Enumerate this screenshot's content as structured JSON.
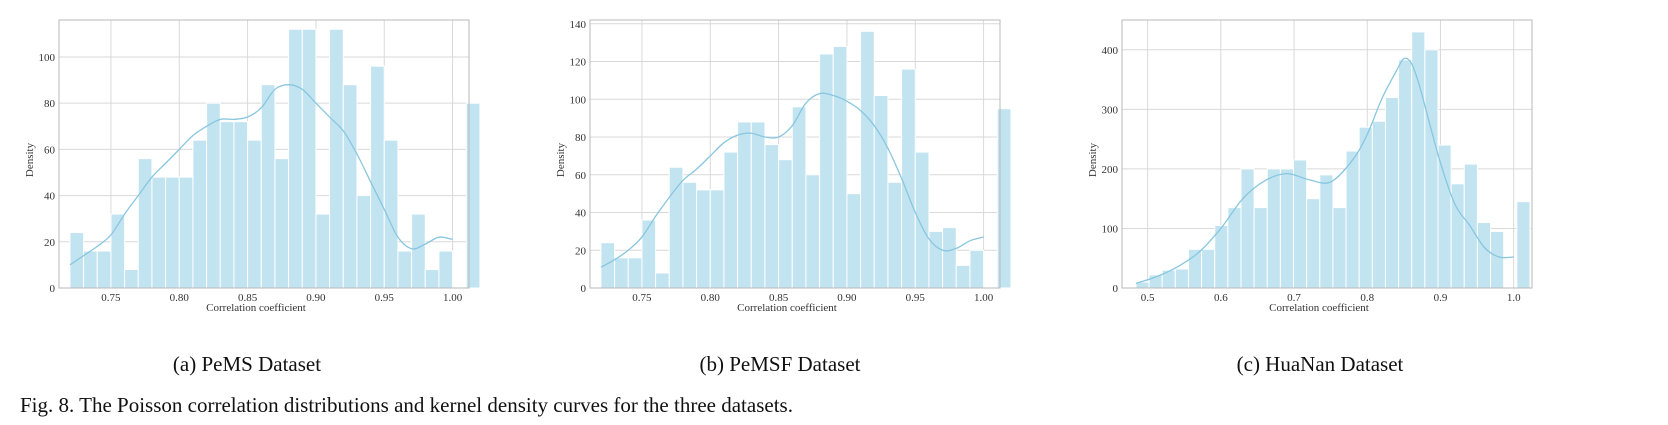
{
  "figure": {
    "caption": "Fig. 8.  The Poisson correlation distributions and kernel density curves for the three datasets."
  },
  "colors": {
    "bar": "#c2e4f1",
    "bar_stroke": "#ffffff",
    "kde": "#88c6df",
    "grid": "#d9d9d9",
    "axes": "#b8b8b8"
  },
  "chart_data": [
    {
      "type": "bar",
      "subcaption": "(a) PeMS Dataset",
      "xlabel": "Correlation coefficient",
      "ylabel": "Density",
      "xlim": [
        0.712,
        1.012
      ],
      "ylim": [
        0,
        116
      ],
      "xticks": [
        0.75,
        0.8,
        0.85,
        0.9,
        0.95,
        1.0
      ],
      "xtick_labels": [
        "0.75",
        "0.80",
        "0.85",
        "0.90",
        "0.95",
        "1.00"
      ],
      "yticks": [
        0,
        20,
        40,
        60,
        80,
        100
      ],
      "bins_start": 0.72,
      "bin_width": 0.01,
      "values": [
        24,
        16,
        16,
        32,
        8,
        56,
        48,
        48,
        48,
        64,
        80,
        72,
        72,
        64,
        88,
        56,
        112,
        112,
        32,
        112,
        88,
        40,
        96,
        64,
        16,
        32,
        8,
        16,
        0,
        80
      ],
      "kde": {
        "x": [
          0.72,
          0.73,
          0.74,
          0.75,
          0.76,
          0.77,
          0.78,
          0.79,
          0.8,
          0.81,
          0.82,
          0.83,
          0.84,
          0.85,
          0.86,
          0.87,
          0.88,
          0.89,
          0.9,
          0.91,
          0.92,
          0.93,
          0.94,
          0.95,
          0.96,
          0.97,
          0.98,
          0.99,
          1.0
        ],
        "y": [
          10,
          14,
          18,
          23,
          32,
          40,
          48,
          54,
          60,
          66,
          70,
          73,
          73,
          74,
          78,
          86,
          88,
          86,
          80,
          74,
          68,
          58,
          46,
          34,
          22,
          17,
          19,
          22,
          21
        ]
      },
      "grid": true
    },
    {
      "type": "bar",
      "subcaption": "(b) PeMSF Dataset",
      "xlabel": "Correlation coefficient",
      "ylabel": "Density",
      "xlim": [
        0.712,
        1.012
      ],
      "ylim": [
        0,
        142
      ],
      "xticks": [
        0.75,
        0.8,
        0.85,
        0.9,
        0.95,
        1.0
      ],
      "xtick_labels": [
        "0.75",
        "0.80",
        "0.85",
        "0.90",
        "0.95",
        "1.00"
      ],
      "yticks": [
        0,
        20,
        40,
        60,
        80,
        100,
        120,
        140
      ],
      "bins_start": 0.72,
      "bin_width": 0.01,
      "values": [
        24,
        16,
        16,
        36,
        8,
        64,
        56,
        52,
        52,
        72,
        88,
        88,
        76,
        68,
        96,
        60,
        124,
        128,
        50,
        136,
        102,
        56,
        116,
        72,
        30,
        32,
        12,
        20,
        0,
        95
      ],
      "kde": {
        "x": [
          0.72,
          0.73,
          0.74,
          0.75,
          0.76,
          0.77,
          0.78,
          0.79,
          0.8,
          0.81,
          0.82,
          0.83,
          0.84,
          0.85,
          0.86,
          0.87,
          0.88,
          0.89,
          0.9,
          0.91,
          0.92,
          0.93,
          0.94,
          0.95,
          0.96,
          0.97,
          0.98,
          0.99,
          1.0
        ],
        "y": [
          11,
          15,
          20,
          27,
          38,
          48,
          57,
          63,
          70,
          77,
          81,
          82,
          80,
          80,
          86,
          98,
          103,
          102,
          99,
          94,
          86,
          74,
          58,
          40,
          26,
          20,
          21,
          25,
          27
        ]
      },
      "grid": true
    },
    {
      "type": "bar",
      "subcaption": "(c) HuaNan Dataset",
      "xlabel": "Correlation coefficient",
      "ylabel": "Density",
      "xlim": [
        0.465,
        1.025
      ],
      "ylim": [
        0,
        450
      ],
      "xticks": [
        0.5,
        0.6,
        0.7,
        0.8,
        0.9,
        1.0
      ],
      "xtick_labels": [
        "0.5",
        "0.6",
        "0.7",
        "0.8",
        "0.9",
        "1.0"
      ],
      "yticks": [
        0,
        100,
        200,
        300,
        400
      ],
      "bins_start": 0.484,
      "bin_width": 0.01794,
      "values": [
        10,
        22,
        30,
        32,
        65,
        65,
        105,
        135,
        200,
        135,
        200,
        200,
        215,
        150,
        190,
        135,
        230,
        270,
        280,
        320,
        383,
        430,
        400,
        240,
        175,
        208,
        110,
        95,
        0,
        145
      ],
      "kde": {
        "x": [
          0.484,
          0.51,
          0.54,
          0.57,
          0.6,
          0.63,
          0.66,
          0.69,
          0.72,
          0.75,
          0.78,
          0.8,
          0.82,
          0.84,
          0.85,
          0.86,
          0.87,
          0.88,
          0.9,
          0.92,
          0.94,
          0.96,
          0.98,
          1.0
        ],
        "y": [
          8,
          18,
          35,
          60,
          100,
          150,
          180,
          192,
          182,
          178,
          215,
          258,
          318,
          365,
          385,
          378,
          345,
          300,
          210,
          140,
          105,
          68,
          52,
          52
        ]
      },
      "grid": true
    }
  ]
}
